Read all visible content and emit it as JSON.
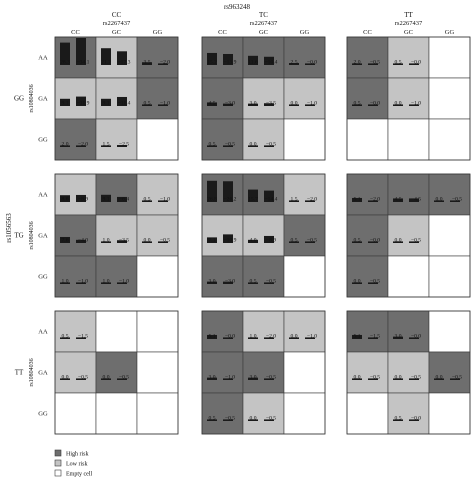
{
  "chart_data": {
    "type": "bar",
    "top_title": "rs963248",
    "row_axis_label": "rs1056563",
    "group_labels": [
      "GG",
      "TG",
      "TT"
    ],
    "col_group_codes": [
      "CC",
      "TC",
      "TT"
    ],
    "col_var_label": "rs2267437",
    "inner_col_labels": [
      "CC",
      "GC",
      "GG"
    ],
    "inner_row_labels": [
      "AA",
      "GA",
      "GG"
    ],
    "inner_row_var_label": "rs10804036",
    "legend": [
      "High risk",
      "Low risk",
      "Empty cell"
    ],
    "colors": {
      "High risk": "#6e6e6e",
      "Low risk": "#c4c4c4",
      "Empty cell": "#ffffff",
      "border": "#3a3a3a",
      "bar": "#1a1a1a"
    },
    "note": "Each cell: two bar values (left, right); status H = high risk, L = low risk, E = empty cell",
    "panels": [
      [
        [
          [
            {
              "v": [
                "28.3",
                "34.1"
              ],
              "s": "H"
            },
            {
              "v": [
                "21.2",
                "17.3"
              ],
              "s": "L"
            },
            {
              "v": [
                "3.5",
                "2.0"
              ],
              "s": "H"
            }
          ],
          [
            {
              "v": [
                "9.1",
                "11.9"
              ],
              "s": "L"
            },
            {
              "v": [
                "9.1",
                "11.4"
              ],
              "s": "L"
            },
            {
              "v": [
                "0.5",
                "1.0"
              ],
              "s": "H"
            }
          ],
          [
            {
              "v": [
                "2.0",
                "2.0"
              ],
              "s": "H"
            },
            {
              "v": [
                "1.5",
                "2.5"
              ],
              "s": "L"
            },
            {
              "v": null,
              "s": "E"
            }
          ]
        ],
        [
          [
            {
              "v": [
                "15.2",
                "13.9"
              ],
              "s": "H"
            },
            {
              "v": [
                "11.6",
                "10.4"
              ],
              "s": "H"
            },
            {
              "v": [
                "2.5",
                "0.0"
              ],
              "s": "H"
            }
          ],
          [
            {
              "v": [
                "4.5",
                "3.0"
              ],
              "s": "H"
            },
            {
              "v": [
                "3.0",
                "3.5"
              ],
              "s": "L"
            },
            {
              "v": [
                "0.0",
                "1.0"
              ],
              "s": "L"
            }
          ],
          [
            {
              "v": [
                "0.5",
                "0.5"
              ],
              "s": "H"
            },
            {
              "v": [
                "0.0",
                "0.5"
              ],
              "s": "L"
            },
            {
              "v": null,
              "s": "E"
            }
          ]
        ],
        [
          [
            {
              "v": [
                "2.0",
                "0.5"
              ],
              "s": "H"
            },
            {
              "v": [
                "0.5",
                "0.0"
              ],
              "s": "L"
            },
            {
              "v": null,
              "s": "E"
            }
          ],
          [
            {
              "v": [
                "0.5",
                "0.0"
              ],
              "s": "H"
            },
            {
              "v": [
                "0.0",
                "1.0"
              ],
              "s": "L"
            },
            {
              "v": null,
              "s": "E"
            }
          ],
          [
            {
              "v": null,
              "s": "E"
            },
            {
              "v": null,
              "s": "E"
            },
            {
              "v": null,
              "s": "E"
            }
          ]
        ]
      ],
      [
        [
          [
            {
              "v": [
                "8.6",
                "8.9"
              ],
              "s": "L"
            },
            {
              "v": [
                "9.1",
                "6.4"
              ],
              "s": "H"
            },
            {
              "v": [
                "0.5",
                "1.0"
              ],
              "s": "L"
            }
          ],
          [
            {
              "v": [
                "7.6",
                "4.0"
              ],
              "s": "H"
            },
            {
              "v": [
                "1.0",
                "3.5"
              ],
              "s": "L"
            },
            {
              "v": [
                "0.0",
                "0.5"
              ],
              "s": "L"
            }
          ],
          [
            {
              "v": [
                "1.0",
                "1.0"
              ],
              "s": "H"
            },
            {
              "v": [
                "1.0",
                "1.0"
              ],
              "s": "H"
            },
            {
              "v": null,
              "s": "E"
            }
          ]
        ],
        [
          [
            {
              "v": [
                "26.8",
                "26.2"
              ],
              "s": "H"
            },
            {
              "v": [
                "15.7",
                "14.4"
              ],
              "s": "H"
            },
            {
              "v": [
                "1.5",
                "2.0"
              ],
              "s": "L"
            }
          ],
          [
            {
              "v": [
                "7.1",
                "10.9"
              ],
              "s": "L"
            },
            {
              "v": [
                "4.0",
                "8.9"
              ],
              "s": "L"
            },
            {
              "v": [
                "0.5",
                "0.5"
              ],
              "s": "H"
            }
          ],
          [
            {
              "v": [
                "3.0",
                "3.0"
              ],
              "s": "H"
            },
            {
              "v": [
                "0.5",
                "0.5"
              ],
              "s": "H"
            },
            {
              "v": null,
              "s": "E"
            }
          ]
        ],
        [
          [
            {
              "v": [
                "5.1",
                "2.0"
              ],
              "s": "H"
            },
            {
              "v": [
                "4.5",
                "4.5"
              ],
              "s": "H"
            },
            {
              "v": [
                "0.0",
                "0.5"
              ],
              "s": "H"
            }
          ],
          [
            {
              "v": [
                "0.5",
                "0.0"
              ],
              "s": "H"
            },
            {
              "v": [
                "0.0",
                "0.5"
              ],
              "s": "L"
            },
            {
              "v": null,
              "s": "E"
            }
          ],
          [
            {
              "v": [
                "0.0",
                "0.5"
              ],
              "s": "H"
            },
            {
              "v": null,
              "s": "E"
            },
            {
              "v": null,
              "s": "E"
            }
          ]
        ]
      ],
      [
        [
          [
            {
              "v": [
                "0.5",
                "1.5"
              ],
              "s": "L"
            },
            {
              "v": null,
              "s": "E"
            },
            {
              "v": null,
              "s": "E"
            }
          ],
          [
            {
              "v": [
                "0.0",
                "0.5"
              ],
              "s": "L"
            },
            {
              "v": [
                "0.0",
                "0.5"
              ],
              "s": "H"
            },
            {
              "v": null,
              "s": "E"
            }
          ],
          [
            {
              "v": null,
              "s": "E"
            },
            {
              "v": null,
              "s": "E"
            },
            {
              "v": null,
              "s": "E"
            }
          ]
        ],
        [
          [
            {
              "v": [
                "5.1",
                "0.0"
              ],
              "s": "H"
            },
            {
              "v": [
                "1.0",
                "2.0"
              ],
              "s": "L"
            },
            {
              "v": [
                "0.0",
                "1.0"
              ],
              "s": "L"
            }
          ],
          [
            {
              "v": [
                "3.0",
                "1.0"
              ],
              "s": "H"
            },
            {
              "v": [
                "3.0",
                "0.5"
              ],
              "s": "H"
            },
            {
              "v": null,
              "s": "E"
            }
          ],
          [
            {
              "v": [
                "0.5",
                "0.5"
              ],
              "s": "H"
            },
            {
              "v": [
                "0.0",
                "0.5"
              ],
              "s": "L"
            },
            {
              "v": null,
              "s": "E"
            }
          ]
        ],
        [
          [
            {
              "v": [
                "5.1",
                "1.5"
              ],
              "s": "H"
            },
            {
              "v": [
                "3.0",
                "0.0"
              ],
              "s": "H"
            },
            {
              "v": null,
              "s": "E"
            }
          ],
          [
            {
              "v": [
                "0.0",
                "0.5"
              ],
              "s": "L"
            },
            {
              "v": [
                "0.0",
                "0.5"
              ],
              "s": "L"
            },
            {
              "v": [
                "0.0",
                "0.5"
              ],
              "s": "H"
            }
          ],
          [
            {
              "v": null,
              "s": "E"
            },
            {
              "v": [
                "0.5",
                "0.0"
              ],
              "s": "L"
            },
            {
              "v": null,
              "s": "E"
            }
          ]
        ]
      ]
    ]
  }
}
